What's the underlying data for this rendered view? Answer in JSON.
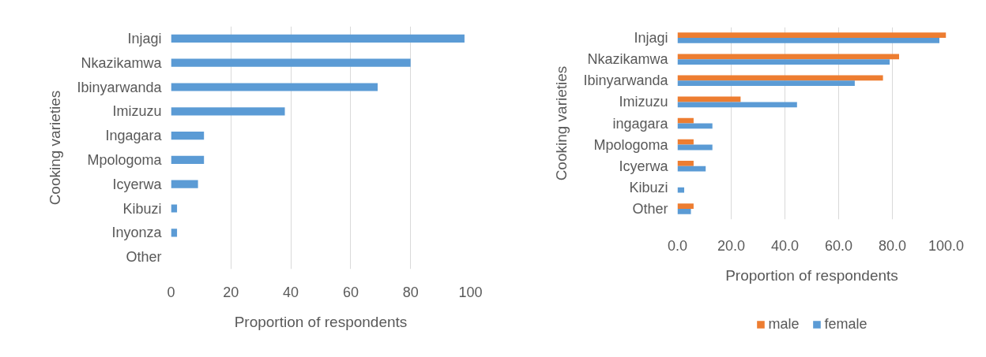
{
  "chart_data": [
    {
      "type": "bar",
      "orientation": "horizontal",
      "categories": [
        "Injagi",
        "Nkazikamwa",
        "Ibinyarwanda",
        "Imizuzu",
        "Ingagara",
        "Mpologoma",
        "Icyerwa",
        "Kibuzi",
        "Inyonza",
        "Other"
      ],
      "values": [
        98,
        80,
        69,
        38,
        11,
        11,
        9,
        2,
        2,
        0
      ],
      "color": "#5b9bd5",
      "xlim": [
        0,
        100
      ],
      "xticks": [
        0,
        20,
        40,
        60,
        80,
        100
      ],
      "xlabel": "Proportion of respondents",
      "ylabel": "Cooking varieties",
      "grid": "x"
    },
    {
      "type": "bar",
      "orientation": "horizontal",
      "categories": [
        "Injagi",
        "Nkazikamwa",
        "Ibinyarwanda",
        "Imizuzu",
        "ingagara",
        "Mpologoma",
        "Icyerwa",
        "Kibuzi",
        "Other"
      ],
      "series": [
        {
          "name": "male",
          "color": "#ed7d31",
          "values": [
            100,
            82.5,
            76.5,
            23.5,
            6,
            6,
            6,
            0,
            6
          ]
        },
        {
          "name": "female",
          "color": "#5b9bd5",
          "values": [
            97.5,
            79,
            66,
            44.5,
            13,
            13,
            10.5,
            2.5,
            5
          ]
        }
      ],
      "xlim": [
        0,
        100
      ],
      "xticks": [
        {
          "value": 0,
          "label": "0.0"
        },
        {
          "value": 20,
          "label": "20.0"
        },
        {
          "value": 40,
          "label": "40.0"
        },
        {
          "value": 60,
          "label": "60.0"
        },
        {
          "value": 80,
          "label": "80.0"
        },
        {
          "value": 100,
          "label": "100.0"
        }
      ],
      "xlabel": "Proportion of respondents",
      "ylabel": "Cooking varieties",
      "grid": "x",
      "legend": "bottom"
    }
  ]
}
